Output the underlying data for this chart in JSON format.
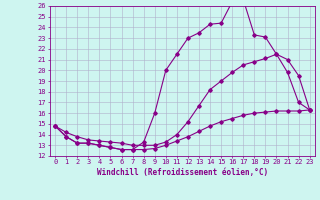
{
  "xlabel": "Windchill (Refroidissement éolien,°C)",
  "bg_color": "#cef5f0",
  "grid_color": "#b0b0cc",
  "line_color": "#880088",
  "x_min": 0,
  "x_max": 23,
  "y_min": 12,
  "y_max": 26,
  "line1_x": [
    0,
    1,
    2,
    3,
    4,
    5,
    6,
    7,
    8,
    9,
    10,
    11,
    12,
    13,
    14,
    15,
    16,
    17,
    18,
    19,
    20,
    21,
    22,
    23
  ],
  "line1_y": [
    14.8,
    13.8,
    13.2,
    13.2,
    13.0,
    12.8,
    12.6,
    12.6,
    13.3,
    16.0,
    20.0,
    21.5,
    23.0,
    23.5,
    24.3,
    24.4,
    26.4,
    26.6,
    23.3,
    23.1,
    21.5,
    19.8,
    17.0,
    16.3
  ],
  "line2_x": [
    0,
    1,
    2,
    3,
    4,
    5,
    6,
    7,
    8,
    9,
    10,
    11,
    12,
    13,
    14,
    15,
    16,
    17,
    18,
    19,
    20,
    21,
    22,
    23
  ],
  "line2_y": [
    14.8,
    14.2,
    13.8,
    13.5,
    13.4,
    13.3,
    13.2,
    13.0,
    13.0,
    13.0,
    13.3,
    14.0,
    15.2,
    16.7,
    18.2,
    19.0,
    19.8,
    20.5,
    20.8,
    21.1,
    21.5,
    21.0,
    19.5,
    16.3
  ],
  "line3_x": [
    0,
    1,
    2,
    3,
    4,
    5,
    6,
    7,
    8,
    9,
    10,
    11,
    12,
    13,
    14,
    15,
    16,
    17,
    18,
    19,
    20,
    21,
    22,
    23
  ],
  "line3_y": [
    14.8,
    13.8,
    13.2,
    13.2,
    13.0,
    12.8,
    12.6,
    12.6,
    12.6,
    12.7,
    13.0,
    13.4,
    13.8,
    14.3,
    14.8,
    15.2,
    15.5,
    15.8,
    16.0,
    16.1,
    16.2,
    16.2,
    16.2,
    16.3
  ],
  "font_size_label": 5.5,
  "font_size_tick": 5.0,
  "marker": "D",
  "marker_size": 1.8,
  "line_width": 0.8
}
